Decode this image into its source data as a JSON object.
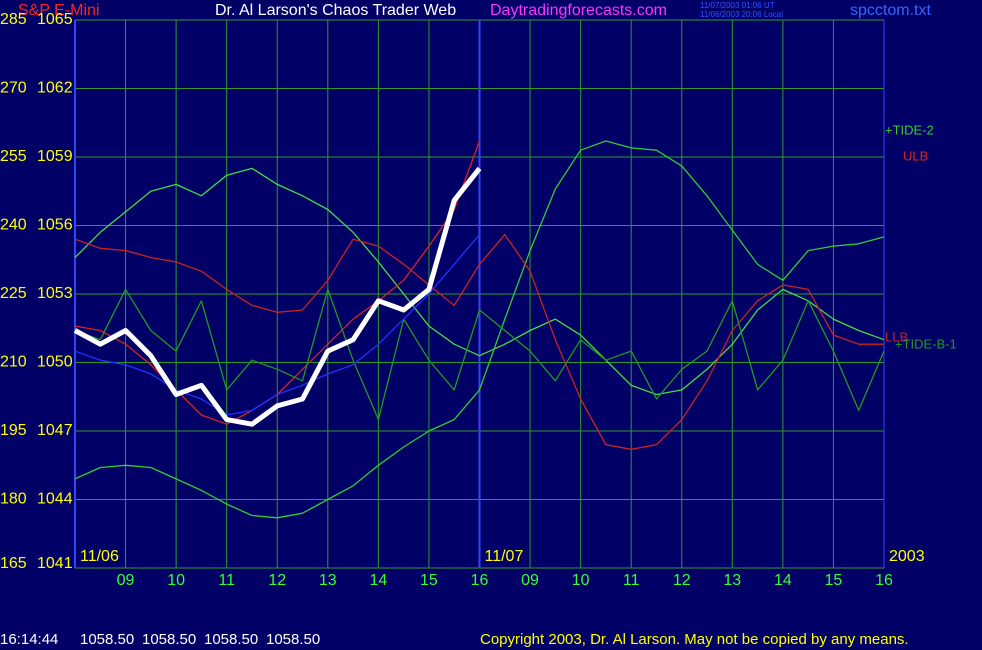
{
  "header": {
    "symbol": "S&P E-Mini",
    "title": "Dr. Al Larson's Chaos Trader Web",
    "site": "Daytradingforecasts.com",
    "time_ut": "11/07/2003 01:06 UT",
    "time_local": "11/06/2003 20:06 Local",
    "file": "spcctom.txt"
  },
  "chart_data": {
    "type": "line",
    "grid": true,
    "x": [
      0,
      0.5,
      1,
      1.5,
      2,
      2.5,
      3,
      3.5,
      4,
      4.5,
      5,
      5.5,
      6,
      6.5,
      7,
      7.5,
      8,
      8.5,
      9,
      9.5,
      10,
      10.5,
      11,
      11.5,
      12,
      12.5,
      13,
      13.5,
      14,
      14.5,
      15,
      15.5,
      16
    ],
    "xlim": [
      0,
      16
    ],
    "xticks": [
      {
        "value": 1,
        "label": "09"
      },
      {
        "value": 2,
        "label": "10"
      },
      {
        "value": 3,
        "label": "11"
      },
      {
        "value": 4,
        "label": "12"
      },
      {
        "value": 5,
        "label": "13"
      },
      {
        "value": 6,
        "label": "14"
      },
      {
        "value": 7,
        "label": "15"
      },
      {
        "value": 8,
        "label": "16"
      },
      {
        "value": 9,
        "label": "09"
      },
      {
        "value": 10,
        "label": "10"
      },
      {
        "value": 11,
        "label": "11"
      },
      {
        "value": 12,
        "label": "12"
      },
      {
        "value": 13,
        "label": "13"
      },
      {
        "value": 14,
        "label": "14"
      },
      {
        "value": 15,
        "label": "15"
      },
      {
        "value": 16,
        "label": "16"
      }
    ],
    "ylim": [
      1041,
      1065
    ],
    "yticks": [
      1041,
      1044,
      1047,
      1050,
      1053,
      1056,
      1059,
      1062,
      1065
    ],
    "y2lim": [
      165,
      285
    ],
    "y2ticks": [
      165,
      180,
      195,
      210,
      225,
      240,
      255,
      270,
      285
    ],
    "annotations": [
      {
        "text": "11/06",
        "x": 0
      },
      {
        "text": "11/07",
        "x": 8
      },
      {
        "text": "2003",
        "x": 16
      }
    ],
    "series": [
      {
        "color": "#44dd44",
        "values": [
          1054.6,
          1055.7,
          1056.6,
          1057.5,
          1057.8,
          1057.3,
          1058.2,
          1058.5,
          1057.8,
          1057.3,
          1056.7,
          1055.7,
          1054.4,
          1053.0,
          1051.6,
          1050.8,
          1050.3,
          1050.8,
          1051.4,
          1051.9,
          1051.2,
          1050.1,
          1049.0,
          1048.6,
          1048.8,
          1049.7,
          1050.8,
          1052.3,
          1053.2,
          1052.7,
          1051.9,
          1051.4,
          1051.0
        ]
      },
      {
        "name": "+TIDE-2",
        "color": "#33cc33",
        "values": [
          1044.9,
          1045.4,
          1045.5,
          1045.4,
          1044.9,
          1044.4,
          1043.8,
          1043.3,
          1043.2,
          1043.4,
          1044.0,
          1044.6,
          1045.5,
          1046.3,
          1047.0,
          1047.5,
          1048.8,
          1051.9,
          1054.9,
          1057.6,
          1059.3,
          1059.7,
          1059.4,
          1059.3,
          1058.6,
          1057.3,
          1055.8,
          1054.3,
          1053.6,
          1054.9,
          1055.1,
          1055.2,
          1055.5
        ]
      },
      {
        "name": "ULB",
        "color": "#dd2222",
        "values": [
          1051.6,
          1051.4,
          1050.8,
          1049.9,
          1048.8,
          1047.7,
          1047.3,
          1047.9,
          1048.6,
          1049.7,
          1050.8,
          1051.9,
          1052.7,
          1053.6,
          1055.1,
          1056.7,
          1059.7,
          null,
          null,
          null,
          null,
          null,
          null,
          null,
          null,
          null,
          null,
          null,
          null,
          null,
          null,
          null,
          null
        ]
      },
      {
        "name": "LLB",
        "color": "#cc2222",
        "values": [
          1055.4,
          1055.0,
          1054.9,
          1054.6,
          1054.4,
          1054.0,
          1053.2,
          1052.5,
          1052.2,
          1052.3,
          1053.6,
          1055.4,
          1055.1,
          1054.3,
          1053.4,
          1052.5,
          1054.3,
          1055.6,
          1054.0,
          1051.0,
          1048.4,
          1046.4,
          1046.2,
          1046.4,
          1047.5,
          1049.2,
          1051.4,
          1052.7,
          1053.4,
          1053.2,
          1051.2,
          1050.8,
          1050.8
        ]
      },
      {
        "name": "+TIDE-B-1",
        "color": "#229922",
        "values": [
          1051.4,
          1051.0,
          1053.2,
          1051.4,
          1050.5,
          1052.7,
          1048.8,
          1050.1,
          1049.7,
          1049.2,
          1053.2,
          1050.1,
          1047.5,
          1051.9,
          1050.1,
          1048.8,
          1052.3,
          1051.4,
          1050.5,
          1049.2,
          1051.0,
          1050.1,
          1050.5,
          1048.4,
          1049.7,
          1050.5,
          1052.7,
          1048.8,
          1050.1,
          1052.7,
          1050.5,
          1047.9,
          1050.5
        ]
      },
      {
        "color": "#2233ff",
        "values": [
          1050.5,
          1050.1,
          1049.9,
          1049.5,
          1048.8,
          1048.4,
          1047.7,
          1047.9,
          1048.6,
          1049.0,
          1049.5,
          1049.9,
          1050.8,
          1051.9,
          1053.0,
          1054.3,
          1055.6,
          null,
          null,
          null,
          null,
          null,
          null,
          null,
          null,
          null,
          null,
          null,
          null,
          null,
          null,
          null,
          null
        ]
      },
      {
        "color": "#ffffff",
        "values": [
          1051.4,
          1050.8,
          1051.4,
          1050.3,
          1048.6,
          1049.0,
          1047.5,
          1047.3,
          1048.1,
          1048.4,
          1050.5,
          1051.0,
          1052.7,
          1052.3,
          1053.2,
          1057.1,
          1058.5,
          null,
          null,
          null,
          null,
          null,
          null,
          null,
          null,
          null,
          null,
          null,
          null,
          null,
          null,
          null,
          null
        ]
      }
    ]
  },
  "footer": {
    "time": "16:14:44",
    "quotes": [
      "1058.50",
      "1058.50",
      "1058.50",
      "1058.50"
    ],
    "copyright": "Copyright 2003, Dr. Al Larson. May not be copied by any means."
  }
}
